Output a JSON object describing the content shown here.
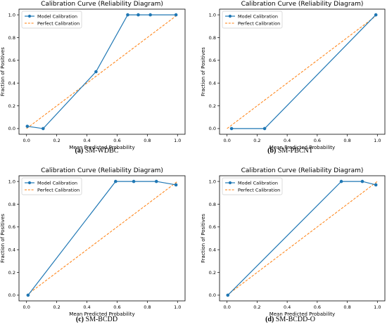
{
  "panels": [
    {
      "caption_label": "(a)",
      "caption_text": "SM-WDBC"
    },
    {
      "caption_label": "(b)",
      "caption_text": "SM-PBCNT"
    },
    {
      "caption_label": "(c)",
      "caption_text": "SM-BCDD"
    },
    {
      "caption_label": "(d)",
      "caption_text": "SM-BCDD-O"
    }
  ],
  "chart_data": [
    {
      "type": "line",
      "title": "Calibration Curve (Reliability Diagram)",
      "xlabel": "Mean Predicted Probability",
      "ylabel": "Fraction of Positives",
      "xlim": [
        -0.05,
        1.05
      ],
      "ylim": [
        -0.05,
        1.05
      ],
      "xticks": [
        "0.0",
        "0.2",
        "0.4",
        "0.6",
        "0.8",
        "1.0"
      ],
      "yticks": [
        "0.0",
        "0.2",
        "0.4",
        "0.6",
        "0.8",
        "1.0"
      ],
      "legend_position": "top-left",
      "series": [
        {
          "name": "Model Calibration",
          "color": "#1f77b4",
          "style": "solid-markers",
          "x": [
            0.005,
            0.11,
            0.46,
            0.67,
            0.74,
            0.82,
            0.99
          ],
          "y": [
            0.02,
            0.0,
            0.5,
            1.0,
            1.0,
            1.0,
            1.0
          ]
        },
        {
          "name": "Perfect Calibration",
          "color": "#ff7f0e",
          "style": "dashed",
          "x": [
            0.0,
            1.0
          ],
          "y": [
            0.0,
            1.0
          ]
        }
      ]
    },
    {
      "type": "line",
      "title": "Calibration Curve (Reliability Diagram)",
      "xlabel": "Mean Predicted Probability",
      "ylabel": "Fraction of Positives",
      "xlim": [
        -0.05,
        1.05
      ],
      "ylim": [
        -0.05,
        1.05
      ],
      "xticks": [
        "0.0",
        "0.2",
        "0.4",
        "0.6",
        "0.8",
        "1.0"
      ],
      "yticks": [
        "0.0",
        "0.2",
        "0.4",
        "0.6",
        "0.8",
        "1.0"
      ],
      "legend_position": "top-left",
      "series": [
        {
          "name": "Model Calibration",
          "color": "#1f77b4",
          "style": "solid-markers",
          "x": [
            0.03,
            0.25,
            0.99
          ],
          "y": [
            0.0,
            0.0,
            1.0
          ]
        },
        {
          "name": "Perfect Calibration",
          "color": "#ff7f0e",
          "style": "dashed",
          "x": [
            0.0,
            1.0
          ],
          "y": [
            0.0,
            1.0
          ]
        }
      ]
    },
    {
      "type": "line",
      "title": "Calibration Curve (Reliability Diagram)",
      "xlabel": "Mean Predicted Probability",
      "ylabel": "Fraction of Positives",
      "xlim": [
        -0.05,
        1.05
      ],
      "ylim": [
        -0.05,
        1.05
      ],
      "xticks": [
        "0.0",
        "0.2",
        "0.4",
        "0.6",
        "0.8",
        "1.0"
      ],
      "yticks": [
        "0.0",
        "0.2",
        "0.4",
        "0.6",
        "0.8",
        "1.0"
      ],
      "legend_position": "top-left",
      "series": [
        {
          "name": "Model Calibration",
          "color": "#1f77b4",
          "style": "solid-markers",
          "x": [
            0.01,
            0.59,
            0.71,
            0.86,
            0.99
          ],
          "y": [
            0.0,
            1.0,
            1.0,
            1.0,
            0.97
          ]
        },
        {
          "name": "Perfect Calibration",
          "color": "#ff7f0e",
          "style": "dashed",
          "x": [
            0.0,
            1.0
          ],
          "y": [
            0.0,
            1.0
          ]
        }
      ]
    },
    {
      "type": "line",
      "title": "Calibration Curve (Reliability Diagram)",
      "xlabel": "Mean Predicted Probability",
      "ylabel": "Fraction of Positives",
      "xlim": [
        -0.05,
        1.05
      ],
      "ylim": [
        -0.05,
        1.05
      ],
      "xticks": [
        "0.0",
        "0.2",
        "0.4",
        "0.6",
        "0.8",
        "1.0"
      ],
      "yticks": [
        "0.0",
        "0.2",
        "0.4",
        "0.6",
        "0.8",
        "1.0"
      ],
      "legend_position": "top-left",
      "series": [
        {
          "name": "Model Calibration",
          "color": "#1f77b4",
          "style": "solid-markers",
          "x": [
            0.005,
            0.76,
            0.9,
            0.99
          ],
          "y": [
            0.0,
            1.0,
            1.0,
            0.97
          ]
        },
        {
          "name": "Perfect Calibration",
          "color": "#ff7f0e",
          "style": "dashed",
          "x": [
            0.0,
            1.0
          ],
          "y": [
            0.0,
            1.0
          ]
        }
      ]
    }
  ]
}
